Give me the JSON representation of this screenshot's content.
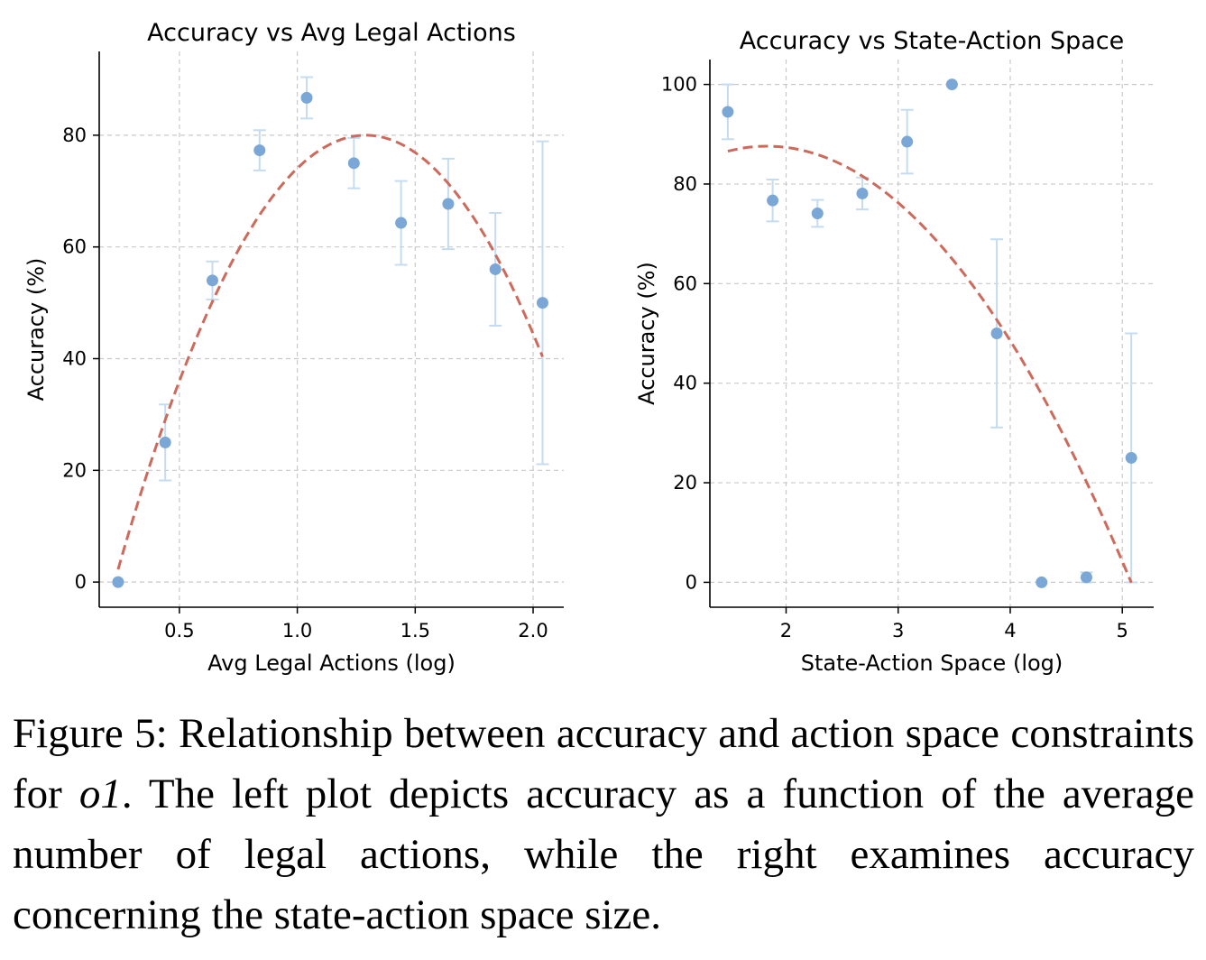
{
  "chart_data": [
    {
      "type": "scatter",
      "title": "Accuracy vs Avg Legal Actions",
      "xlabel": "Avg Legal Actions (log)",
      "ylabel": "Accuracy (%)",
      "xlim": [
        0.16,
        2.13
      ],
      "ylim": [
        -4.5,
        95
      ],
      "xticks": [
        0.5,
        1.0,
        1.5,
        2.0
      ],
      "xtick_labels": [
        "0.5",
        "1.0",
        "1.5",
        "2.0"
      ],
      "yticks": [
        0,
        20,
        40,
        60,
        80
      ],
      "ytick_labels": [
        "0",
        "20",
        "40",
        "60",
        "80"
      ],
      "grid": true,
      "points": [
        {
          "x": 0.24,
          "y": 0,
          "err_low": 0,
          "err_high": 0
        },
        {
          "x": 0.44,
          "y": 25,
          "err_low": 18.2,
          "err_high": 31.8
        },
        {
          "x": 0.64,
          "y": 54,
          "err_low": 50.6,
          "err_high": 57.4
        },
        {
          "x": 0.84,
          "y": 77.3,
          "err_low": 73.7,
          "err_high": 80.9
        },
        {
          "x": 1.04,
          "y": 86.7,
          "err_low": 83.0,
          "err_high": 90.4
        },
        {
          "x": 1.24,
          "y": 75,
          "err_low": 70.5,
          "err_high": 79.5
        },
        {
          "x": 1.44,
          "y": 64.3,
          "err_low": 56.8,
          "err_high": 71.8
        },
        {
          "x": 1.64,
          "y": 67.7,
          "err_low": 59.6,
          "err_high": 75.8
        },
        {
          "x": 1.84,
          "y": 56,
          "err_low": 45.9,
          "err_high": 66.1
        },
        {
          "x": 2.04,
          "y": 50,
          "err_low": 21.1,
          "err_high": 78.9
        }
      ],
      "fit": {
        "type": "quadratic",
        "vertex_x": 1.29,
        "vertex_y": 80.0,
        "a": -70.5,
        "x_range": [
          0.24,
          2.04
        ]
      },
      "colors": {
        "points": "#7ba7d6",
        "errorbars": "#c5dcf0",
        "fit": "#cd6a5c",
        "grid": "#c9c9c9"
      }
    },
    {
      "type": "scatter",
      "title": "Accuracy vs State-Action Space",
      "xlabel": "State-Action Space (log)",
      "ylabel": "Accuracy (%)",
      "xlim": [
        1.32,
        5.28
      ],
      "ylim": [
        -5,
        105
      ],
      "xticks": [
        2,
        3,
        4,
        5
      ],
      "xtick_labels": [
        "2",
        "3",
        "4",
        "5"
      ],
      "yticks": [
        0,
        20,
        40,
        60,
        80,
        100
      ],
      "ytick_labels": [
        "0",
        "20",
        "40",
        "60",
        "80",
        "100"
      ],
      "grid": true,
      "points": [
        {
          "x": 1.48,
          "y": 94.5,
          "err_low": 89.0,
          "err_high": 100
        },
        {
          "x": 1.88,
          "y": 76.7,
          "err_low": 72.5,
          "err_high": 80.9
        },
        {
          "x": 2.28,
          "y": 74.1,
          "err_low": 71.4,
          "err_high": 76.8
        },
        {
          "x": 2.68,
          "y": 78.1,
          "err_low": 74.9,
          "err_high": 81.3
        },
        {
          "x": 3.08,
          "y": 88.5,
          "err_low": 82.1,
          "err_high": 94.9
        },
        {
          "x": 3.48,
          "y": 100,
          "err_low": 100,
          "err_high": 100
        },
        {
          "x": 3.88,
          "y": 50,
          "err_low": 31.1,
          "err_high": 68.9
        },
        {
          "x": 4.28,
          "y": 0,
          "err_low": 0,
          "err_high": 0
        },
        {
          "x": 4.68,
          "y": 1,
          "err_low": 0,
          "err_high": 2
        },
        {
          "x": 5.08,
          "y": 25,
          "err_low": 0,
          "err_high": 50
        }
      ],
      "fit": {
        "type": "quadratic",
        "vertex_x": 1.83,
        "vertex_y": 87.6,
        "a": -8.3,
        "x_range": [
          1.48,
          5.08
        ]
      },
      "colors": {
        "points": "#7ba7d6",
        "errorbars": "#c5dcf0",
        "fit": "#cd6a5c",
        "grid": "#c9c9c9"
      }
    }
  ],
  "caption": {
    "lead": "Figure 5: Relationship between accuracy and action space constraints for ",
    "model": "o1",
    "rest": ". The left plot depicts accuracy as a function of the average number of legal actions, while the right examines accuracy concerning the state-action space size."
  }
}
